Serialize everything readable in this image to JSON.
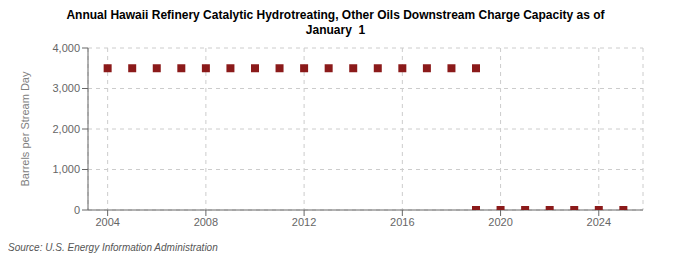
{
  "chart_data": {
    "type": "scatter",
    "title": "Annual Hawaii Refinery Catalytic Hydrotreating, Other Oils Downstream Charge Capacity as of\nJanuary  1",
    "y_label": "Barrels per Stream Day",
    "annotations": [
      "Source: U.S. Energy Information Administration"
    ],
    "series": [
      {
        "x": [
          2004,
          2005,
          2006,
          2007,
          2008,
          2009,
          2010,
          2011,
          2012,
          2013,
          2014,
          2015,
          2016,
          2017,
          2018,
          2019
        ],
        "values": [
          3500,
          3500,
          3500,
          3500,
          3500,
          3500,
          3500,
          3500,
          3500,
          3500,
          3500,
          3500,
          3500,
          3500,
          3500,
          3500
        ],
        "color": "#8b1a1a",
        "marker": "square"
      },
      {
        "x": [
          2019,
          2020,
          2021,
          2022,
          2023,
          2024,
          2025
        ],
        "values": [
          0,
          0,
          0,
          0,
          0,
          0,
          0
        ],
        "color": "#8b1a1a",
        "marker": "square"
      }
    ],
    "xlim": [
      2003.2,
      2025.8
    ],
    "ylim": [
      0,
      4000
    ],
    "xticks": [
      2004,
      2008,
      2012,
      2016,
      2020,
      2024
    ],
    "yticks": [
      0,
      {
        "value": 1000,
        "label": "1,000"
      },
      {
        "value": 2000,
        "label": "2,000"
      },
      {
        "value": 3000,
        "label": "3,000"
      },
      {
        "value": 4000,
        "label": "4,000"
      }
    ],
    "grid": true
  }
}
